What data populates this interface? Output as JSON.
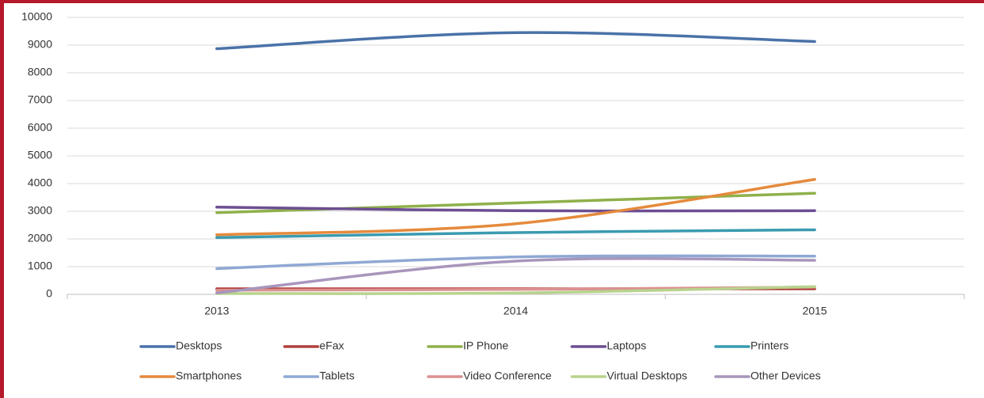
{
  "chart_data": {
    "type": "line",
    "categories": [
      "2013",
      "2014",
      "2015"
    ],
    "series": [
      {
        "name": "Desktops",
        "color": "#4a72a8",
        "values": [
          8870,
          9450,
          9130
        ]
      },
      {
        "name": "eFax",
        "color": "#b0403c",
        "values": [
          200,
          200,
          200
        ]
      },
      {
        "name": "IP Phone",
        "color": "#8fb04a",
        "values": [
          2950,
          3300,
          3650
        ]
      },
      {
        "name": "Laptops",
        "color": "#6d4e92",
        "values": [
          3150,
          3020,
          3020
        ]
      },
      {
        "name": "Printers",
        "color": "#3a9bb0",
        "values": [
          2050,
          2230,
          2330
        ]
      },
      {
        "name": "Smartphones",
        "color": "#e58a3c",
        "values": [
          2150,
          2550,
          4150
        ]
      },
      {
        "name": "Tablets",
        "color": "#8fa8d4",
        "values": [
          930,
          1350,
          1380
        ]
      },
      {
        "name": "Video Conference",
        "color": "#dc9190",
        "values": [
          150,
          180,
          260
        ]
      },
      {
        "name": "Virtual Desktops",
        "color": "#b8d38e",
        "values": [
          30,
          50,
          280
        ]
      },
      {
        "name": "Other Devices",
        "color": "#a896bc",
        "values": [
          50,
          1200,
          1230
        ]
      }
    ],
    "ylim": [
      0,
      10000
    ],
    "yticks": [
      0,
      1000,
      2000,
      3000,
      4000,
      5000,
      6000,
      7000,
      8000,
      9000,
      10000
    ],
    "grid": true,
    "smooth": true,
    "legend": "bottom"
  }
}
